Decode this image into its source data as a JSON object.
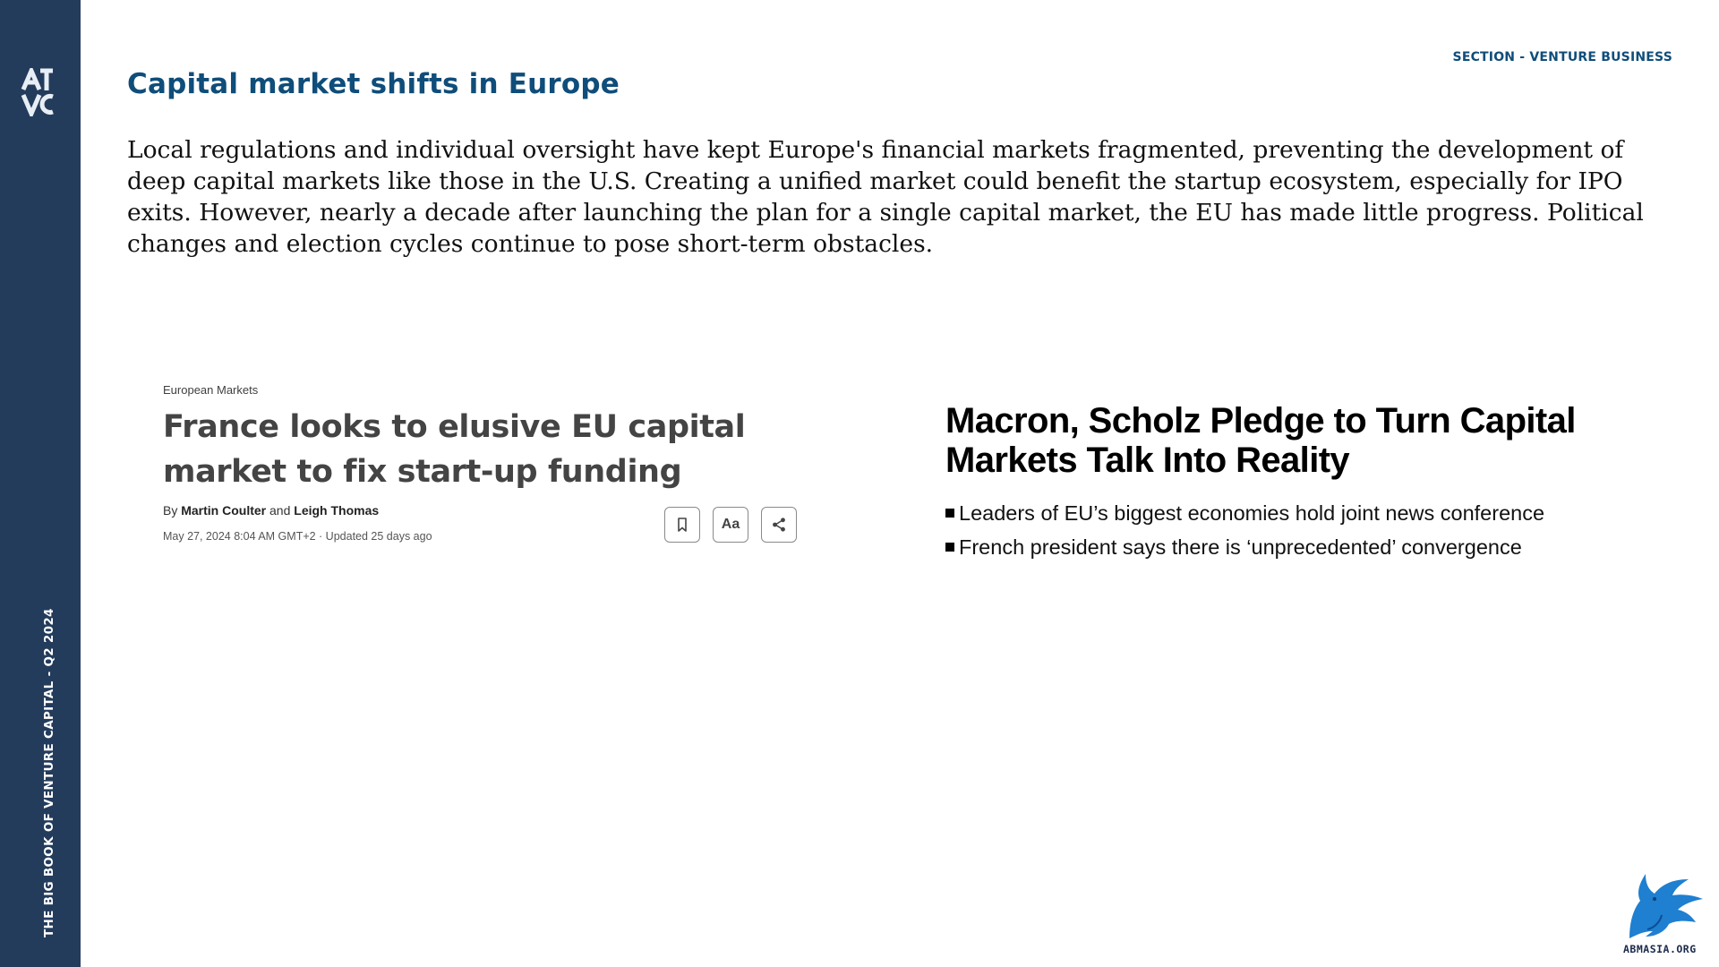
{
  "sidebar": {
    "logo_text": "ATVC",
    "vertical_text": "THE BIG BOOK OF VENTURE CAPITAL - Q2 2024"
  },
  "header": {
    "section_label": "SECTION - VENTURE BUSINESS",
    "title": "Capital market shifts in Europe"
  },
  "body": {
    "intro": "Local regulations and individual oversight have kept Europe's financial markets fragmented, preventing the development of deep capital markets like those in the U.S. Creating a unified market could benefit the startup ecosystem, especially for IPO exits. However, nearly a decade after launching the plan for a single capital market, the EU has made little progress. Political changes and election cycles continue to pose short-term obstacles."
  },
  "article_left": {
    "kicker": "European Markets",
    "headline": "France looks to elusive EU capital market to fix start-up funding",
    "by_prefix": "By",
    "author_1": "Martin Coulter",
    "and_word": "and",
    "author_2": "Leigh Thomas",
    "dateline": "May 27, 2024 8:04 AM GMT+2 · Updated 25 days ago",
    "text_size_label": "Aa",
    "icons": [
      "bookmark-icon",
      "text-size-icon",
      "share-icon"
    ]
  },
  "article_right": {
    "headline": "Macron, Scholz Pledge to Turn Capital Markets Talk Into Reality",
    "bullets": [
      "Leaders of EU’s biggest economies hold joint news conference",
      "French president says there is ‘unprecedented’ convergence"
    ]
  },
  "watermark": {
    "text": "ABMASIA.ORG"
  },
  "colors": {
    "sidebar_bg": "#243c5c",
    "title": "#0f4d7a",
    "watermark_bird": "#1f7fd0"
  }
}
